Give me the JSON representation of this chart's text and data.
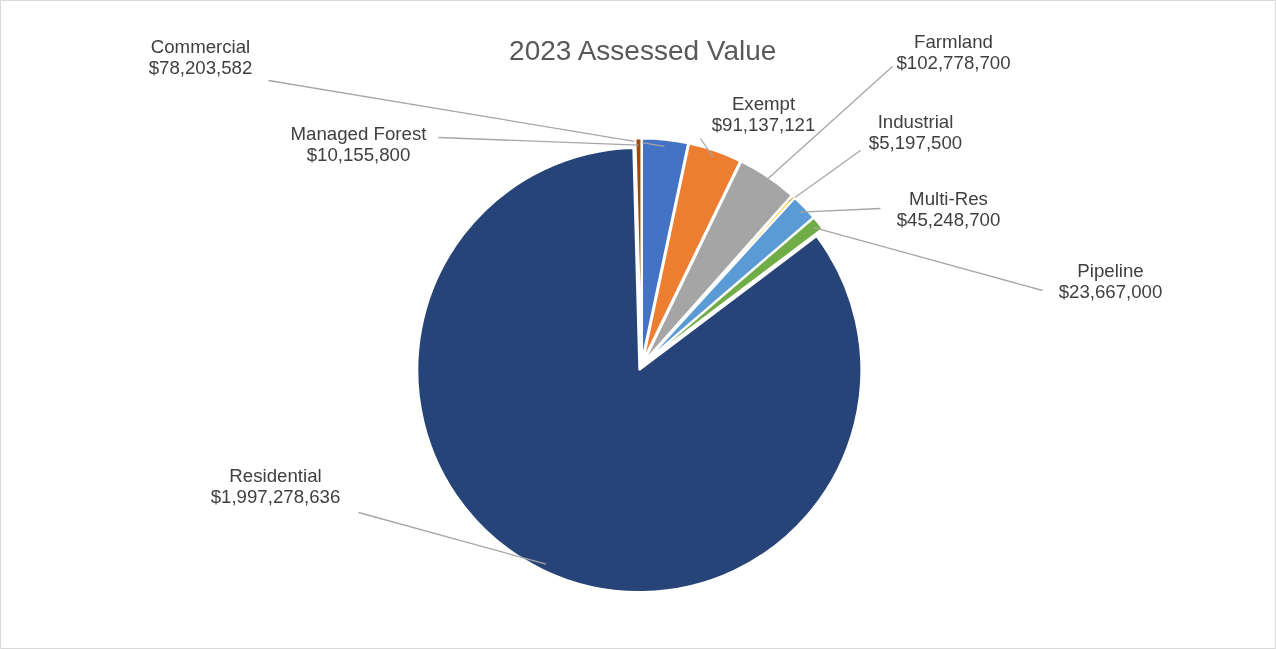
{
  "chart_data": {
    "type": "pie",
    "title": "2023 Assessed Value",
    "categories": [
      "Commercial",
      "Exempt",
      "Farmland",
      "Industrial",
      "Multi-Res",
      "Pipeline",
      "Residential",
      "Managed Forest"
    ],
    "values": [
      78203582,
      91137121,
      102778700,
      5197500,
      45248700,
      23667000,
      1997278636,
      10155800
    ],
    "colors": [
      "#4472c4",
      "#ed7d31",
      "#a5a5a5",
      "#ffc000",
      "#5b9bd5",
      "#70ad47",
      "#264478",
      "#9e480e"
    ],
    "value_labels": [
      "$78,203,582",
      "$91,137,121",
      "$102,778,700",
      "$5,197,500",
      "$45,248,700",
      "$23,667,000",
      "$1,997,278,636",
      "$10,155,800"
    ]
  }
}
